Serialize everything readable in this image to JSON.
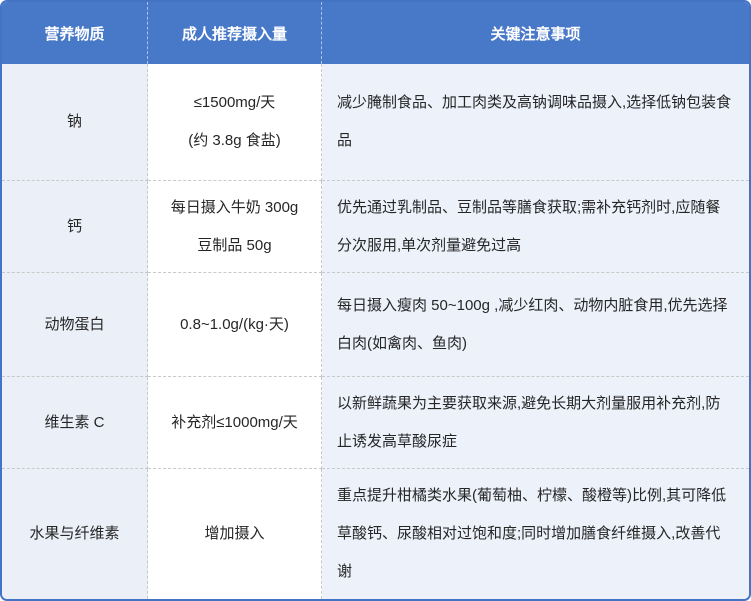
{
  "colors": {
    "header_bg": "#4878c8",
    "outer_border": "#4472c4",
    "nutrient_col_bg": "#ebeff7",
    "notes_col_bg": "#ecf1fa",
    "divider": "#c9c9c9",
    "text": "#262626",
    "header_text": "#ffffff"
  },
  "table": {
    "headers": [
      "营养物质",
      "成人推荐摄入量",
      "关键注意事项"
    ],
    "rows": [
      {
        "nutrient": "钠",
        "intake": "≤1500mg/天\n(约 3.8g 食盐)",
        "notes": "减少腌制食品、加工肉类及高钠调味品摄入,选择低钠包装食品"
      },
      {
        "nutrient": "钙",
        "intake": "每日摄入牛奶 300g\n豆制品 50g",
        "notes": "优先通过乳制品、豆制品等膳食获取;需补充钙剂时,应随餐分次服用,单次剂量避免过高"
      },
      {
        "nutrient": "动物蛋白",
        "intake": "0.8~1.0g/(kg·天)",
        "notes": "每日摄入瘦肉 50~100g ,减少红肉、动物内脏食用,优先选择白肉(如禽肉、鱼肉)"
      },
      {
        "nutrient": "维生素 C",
        "intake": "补充剂≤1000mg/天",
        "notes": "以新鲜蔬果为主要获取来源,避免长期大剂量服用补充剂,防止诱发高草酸尿症"
      },
      {
        "nutrient": "水果与纤维素",
        "intake": "增加摄入",
        "notes": "重点提升柑橘类水果(葡萄柚、柠檬、酸橙等)比例,其可降低草酸钙、尿酸相对过饱和度;同时增加膳食纤维摄入,改善代谢"
      }
    ]
  }
}
